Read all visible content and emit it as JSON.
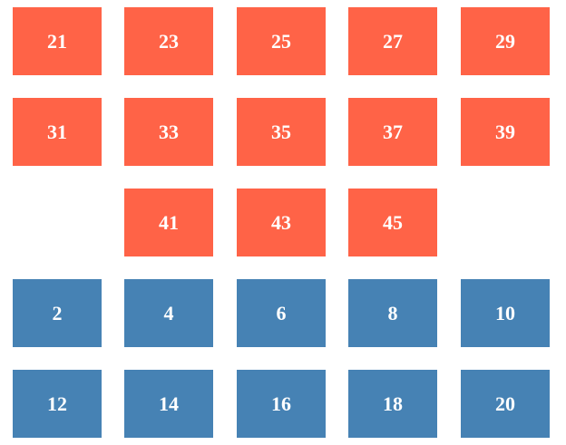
{
  "colors": {
    "orange": "#ff6347",
    "blue": "#4682b4"
  },
  "odd_tiles": [
    {
      "label": "21"
    },
    {
      "label": "23"
    },
    {
      "label": "25"
    },
    {
      "label": "27"
    },
    {
      "label": "29"
    },
    {
      "label": "31"
    },
    {
      "label": "33"
    },
    {
      "label": "35"
    },
    {
      "label": "37"
    },
    {
      "label": "39"
    },
    {
      "label": "41"
    },
    {
      "label": "43"
    },
    {
      "label": "45"
    }
  ],
  "even_tiles": [
    {
      "label": "2"
    },
    {
      "label": "4"
    },
    {
      "label": "6"
    },
    {
      "label": "8"
    },
    {
      "label": "10"
    },
    {
      "label": "12"
    },
    {
      "label": "14"
    },
    {
      "label": "16"
    },
    {
      "label": "18"
    },
    {
      "label": "20"
    }
  ]
}
